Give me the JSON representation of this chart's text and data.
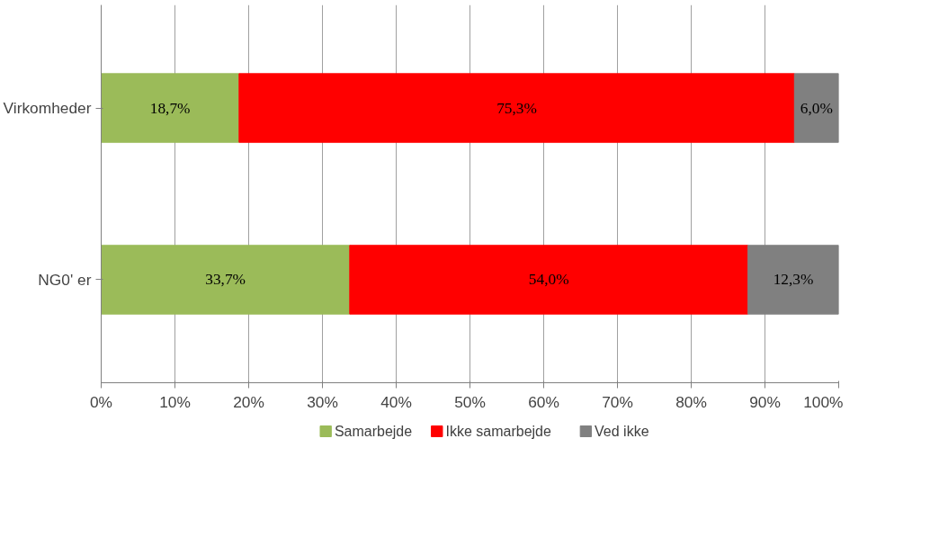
{
  "chart_data": {
    "type": "bar",
    "orientation": "horizontal",
    "stacked": true,
    "categories": [
      "Virkomheder",
      "NG0' er"
    ],
    "series": [
      {
        "name": "Samarbejde",
        "color": "#9bbb59",
        "values": [
          18.7,
          33.7
        ],
        "value_labels": [
          "18,7%",
          "33,7%"
        ]
      },
      {
        "name": "Ikke samarbejde",
        "color": "#ff0000",
        "values": [
          75.3,
          54.0
        ],
        "value_labels": [
          "75,3%",
          "54,0%"
        ]
      },
      {
        "name": "Ved ikke",
        "color": "#808080",
        "values": [
          6.0,
          12.3
        ],
        "value_labels": [
          "6,0%",
          "12,3%"
        ]
      }
    ],
    "xlim": [
      0,
      100
    ],
    "xticks": [
      {
        "value": 0,
        "label": "0%"
      },
      {
        "value": 10,
        "label": "10%"
      },
      {
        "value": 20,
        "label": "20%"
      },
      {
        "value": 30,
        "label": "30%"
      },
      {
        "value": 40,
        "label": "40%"
      },
      {
        "value": 50,
        "label": "50%"
      },
      {
        "value": 60,
        "label": "60%"
      },
      {
        "value": 70,
        "label": "70%"
      },
      {
        "value": 80,
        "label": "80%"
      },
      {
        "value": 90,
        "label": "90%"
      },
      {
        "value": 100,
        "label": "100%"
      }
    ],
    "grid": "x",
    "legend": "bottom"
  }
}
